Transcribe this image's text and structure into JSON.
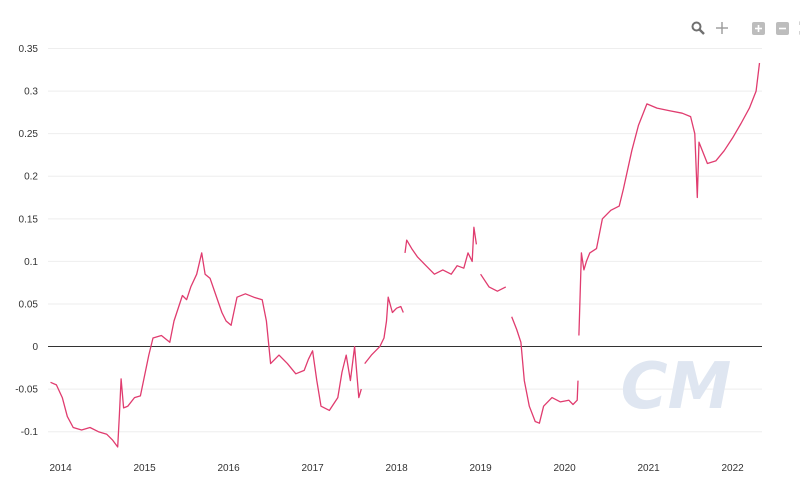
{
  "toolbar": {
    "icons": [
      "zoom-icon",
      "pan-icon",
      "zoom-in-icon",
      "zoom-out-icon",
      "reset-zoom-icon"
    ]
  },
  "watermark": "CM",
  "colors": {
    "series": "#e03c6f",
    "zero_line": "#333333",
    "grid": "#eeeeee",
    "watermark": "#dfe6f1",
    "tick_text": "#333333",
    "toolbar_icon": "#9a9a9a"
  },
  "chart_data": {
    "type": "line",
    "title": "",
    "xlabel": "",
    "ylabel": "",
    "xlim": [
      2013.85,
      2022.35
    ],
    "ylim": [
      -0.125,
      0.36
    ],
    "x_ticks": [
      2014,
      2015,
      2016,
      2017,
      2018,
      2019,
      2020,
      2021,
      2022
    ],
    "x_tick_labels": [
      "2014",
      "2015",
      "2016",
      "2017",
      "2018",
      "2019",
      "2020",
      "2021",
      "2022"
    ],
    "y_ticks": [
      -0.1,
      -0.05,
      0,
      0.05,
      0.1,
      0.15,
      0.2,
      0.25,
      0.3,
      0.35
    ],
    "y_tick_labels": [
      "-0.1",
      "-0.05",
      "0",
      "0.05",
      "0.1",
      "0.15",
      "0.2",
      "0.25",
      "0.3",
      "0.35"
    ],
    "grid": true,
    "zero_line": true,
    "series": [
      {
        "color": "#e03c6f",
        "segments": [
          [
            [
              2013.88,
              -0.042
            ],
            [
              2013.95,
              -0.045
            ],
            [
              2014.02,
              -0.06
            ],
            [
              2014.08,
              -0.082
            ],
            [
              2014.15,
              -0.095
            ],
            [
              2014.25,
              -0.098
            ],
            [
              2014.35,
              -0.095
            ],
            [
              2014.45,
              -0.1
            ],
            [
              2014.55,
              -0.103
            ],
            [
              2014.62,
              -0.11
            ],
            [
              2014.68,
              -0.118
            ],
            [
              2014.7,
              -0.08
            ],
            [
              2014.72,
              -0.038
            ],
            [
              2014.75,
              -0.072
            ],
            [
              2014.8,
              -0.07
            ],
            [
              2014.88,
              -0.06
            ],
            [
              2014.95,
              -0.058
            ],
            [
              2015.05,
              -0.01
            ],
            [
              2015.1,
              0.01
            ],
            [
              2015.2,
              0.013
            ],
            [
              2015.3,
              0.005
            ],
            [
              2015.35,
              0.03
            ],
            [
              2015.45,
              0.06
            ],
            [
              2015.5,
              0.055
            ],
            [
              2015.55,
              0.07
            ],
            [
              2015.62,
              0.085
            ],
            [
              2015.68,
              0.11
            ],
            [
              2015.72,
              0.085
            ],
            [
              2015.78,
              0.08
            ],
            [
              2015.85,
              0.06
            ],
            [
              2015.92,
              0.04
            ],
            [
              2015.97,
              0.03
            ],
            [
              2016.03,
              0.025
            ],
            [
              2016.1,
              0.058
            ],
            [
              2016.2,
              0.062
            ],
            [
              2016.3,
              0.058
            ],
            [
              2016.4,
              0.055
            ],
            [
              2016.45,
              0.03
            ],
            [
              2016.5,
              -0.02
            ],
            [
              2016.6,
              -0.01
            ],
            [
              2016.7,
              -0.02
            ],
            [
              2016.8,
              -0.032
            ],
            [
              2016.9,
              -0.028
            ],
            [
              2016.95,
              -0.015
            ],
            [
              2017.0,
              -0.005
            ],
            [
              2017.05,
              -0.04
            ],
            [
              2017.1,
              -0.07
            ],
            [
              2017.2,
              -0.075
            ],
            [
              2017.3,
              -0.06
            ],
            [
              2017.35,
              -0.03
            ],
            [
              2017.4,
              -0.01
            ],
            [
              2017.45,
              -0.04
            ],
            [
              2017.5,
              0.0
            ],
            [
              2017.55,
              -0.06
            ],
            [
              2017.58,
              -0.05
            ]
          ],
          [
            [
              2017.62,
              -0.02
            ],
            [
              2017.7,
              -0.01
            ],
            [
              2017.8,
              0.0
            ],
            [
              2017.85,
              0.01
            ],
            [
              2017.88,
              0.03
            ],
            [
              2017.9,
              0.058
            ],
            [
              2017.95,
              0.04
            ],
            [
              2018.0,
              0.045
            ],
            [
              2018.05,
              0.047
            ],
            [
              2018.08,
              0.04
            ]
          ],
          [
            [
              2018.1,
              0.11
            ],
            [
              2018.12,
              0.125
            ],
            [
              2018.18,
              0.115
            ],
            [
              2018.25,
              0.105
            ],
            [
              2018.35,
              0.095
            ],
            [
              2018.45,
              0.085
            ],
            [
              2018.55,
              0.09
            ],
            [
              2018.65,
              0.085
            ],
            [
              2018.72,
              0.095
            ],
            [
              2018.8,
              0.092
            ],
            [
              2018.85,
              0.11
            ],
            [
              2018.9,
              0.1
            ],
            [
              2018.92,
              0.14
            ],
            [
              2018.95,
              0.12
            ]
          ],
          [
            [
              2019.0,
              0.085
            ],
            [
              2019.1,
              0.07
            ],
            [
              2019.2,
              0.065
            ],
            [
              2019.3,
              0.07
            ]
          ],
          [
            [
              2019.37,
              0.035
            ],
            [
              2019.43,
              0.02
            ],
            [
              2019.48,
              0.005
            ],
            [
              2019.52,
              -0.04
            ],
            [
              2019.58,
              -0.07
            ],
            [
              2019.65,
              -0.088
            ],
            [
              2019.7,
              -0.09
            ],
            [
              2019.75,
              -0.07
            ],
            [
              2019.85,
              -0.06
            ],
            [
              2019.95,
              -0.065
            ],
            [
              2020.05,
              -0.063
            ],
            [
              2020.1,
              -0.068
            ],
            [
              2020.15,
              -0.063
            ],
            [
              2020.16,
              -0.04
            ]
          ],
          [
            [
              2020.17,
              0.013
            ],
            [
              2020.2,
              0.11
            ],
            [
              2020.23,
              0.09
            ],
            [
              2020.26,
              0.1
            ],
            [
              2020.3,
              0.11
            ],
            [
              2020.38,
              0.115
            ],
            [
              2020.45,
              0.15
            ],
            [
              2020.55,
              0.16
            ],
            [
              2020.65,
              0.165
            ],
            [
              2020.7,
              0.185
            ],
            [
              2020.8,
              0.23
            ],
            [
              2020.88,
              0.26
            ],
            [
              2020.92,
              0.27
            ],
            [
              2020.98,
              0.285
            ],
            [
              2021.1,
              0.28
            ],
            [
              2021.25,
              0.277
            ],
            [
              2021.4,
              0.274
            ],
            [
              2021.5,
              0.27
            ],
            [
              2021.55,
              0.25
            ],
            [
              2021.58,
              0.175
            ],
            [
              2021.6,
              0.24
            ],
            [
              2021.7,
              0.215
            ],
            [
              2021.8,
              0.218
            ],
            [
              2021.9,
              0.23
            ],
            [
              2022.0,
              0.245
            ],
            [
              2022.1,
              0.262
            ],
            [
              2022.2,
              0.28
            ],
            [
              2022.28,
              0.3
            ],
            [
              2022.32,
              0.333
            ]
          ]
        ]
      }
    ]
  }
}
